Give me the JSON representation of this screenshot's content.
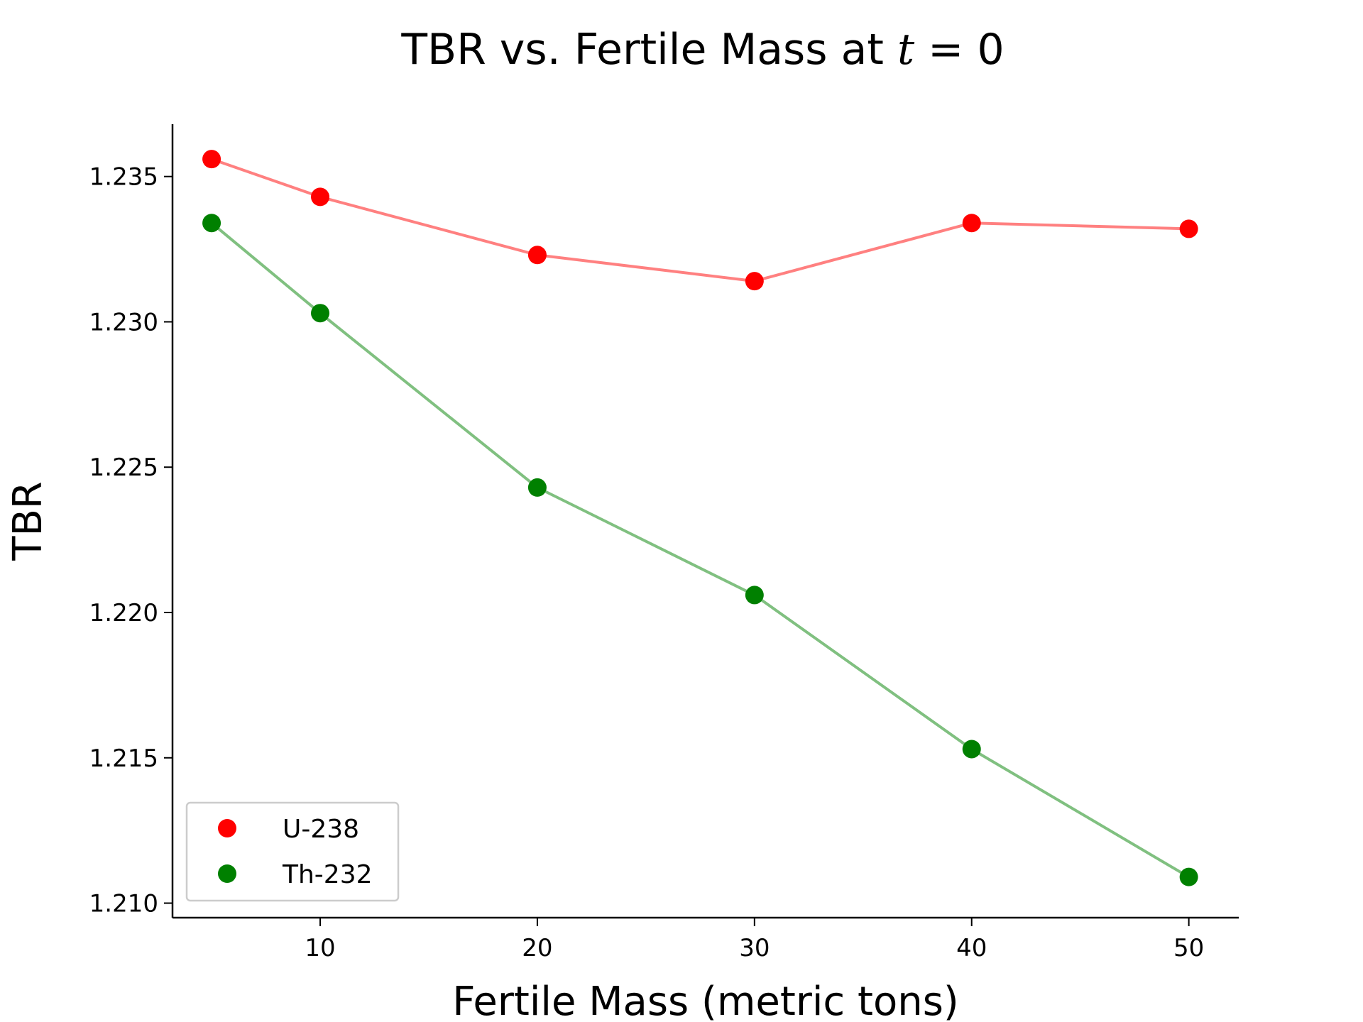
{
  "chart_data": {
    "type": "line",
    "title": "TBR vs. Fertile Mass at t = 0",
    "title_parts": {
      "main": "TBR vs. Fertile Mass at ",
      "var": "t",
      "rest": " = 0"
    },
    "xlabel": "Fertile Mass (metric tons)",
    "ylabel": "TBR",
    "x": [
      5,
      10,
      20,
      30,
      40,
      50
    ],
    "xlim": [
      3.2,
      52.3
    ],
    "ylim": [
      1.2095,
      1.2368
    ],
    "xticks": [
      10,
      20,
      30,
      40,
      50
    ],
    "yticks": [
      1.21,
      1.215,
      1.22,
      1.225,
      1.23,
      1.235
    ],
    "ytick_labels": [
      "1.210",
      "1.215",
      "1.220",
      "1.225",
      "1.230",
      "1.235"
    ],
    "grid": false,
    "legend_position": "lower-left",
    "series": [
      {
        "name": "U-238",
        "marker_color": "#ff0000",
        "line_color": "#ff8080",
        "values": [
          1.2356,
          1.2343,
          1.2323,
          1.2314,
          1.2334,
          1.2332
        ]
      },
      {
        "name": "Th-232",
        "marker_color": "#008000",
        "line_color": "#80c080",
        "values": [
          1.2334,
          1.2303,
          1.2243,
          1.2206,
          1.2153,
          1.2109
        ]
      }
    ]
  }
}
